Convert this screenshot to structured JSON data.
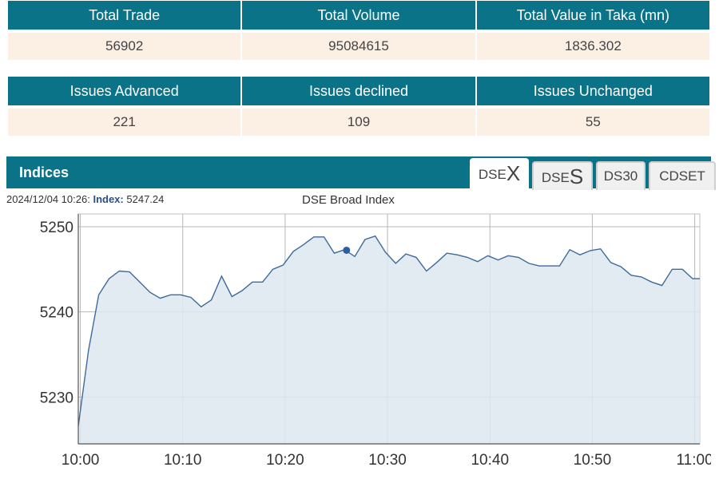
{
  "summary": {
    "headers": [
      "Total Trade",
      "Total Volume",
      "Total Value in Taka (mn)"
    ],
    "values": [
      "56902",
      "95084615",
      "1836.302"
    ]
  },
  "issues": {
    "headers": [
      "Issues Advanced",
      "Issues declined",
      "Issues Unchanged"
    ],
    "values": [
      "221",
      "109",
      "55"
    ]
  },
  "indices": {
    "title": "Indices",
    "tabs": [
      {
        "prefix": "DSE",
        "suffix": "X",
        "active": true
      },
      {
        "prefix": "DSE",
        "suffix": "S",
        "active": false
      },
      {
        "prefix": "DS30",
        "suffix": "",
        "active": false
      },
      {
        "prefix": "CDSET",
        "suffix": "",
        "active": false
      }
    ],
    "info": {
      "datetime": "2024/12/04 10:26:",
      "index_label": "Index:",
      "index_value": "5247.24"
    }
  },
  "colors": {
    "header_bg": "#0b7388",
    "cell_bg": "#fcefe4",
    "line": "#3f6a9a",
    "area": "#dde6f0",
    "marker": "#2a5fa0"
  },
  "chart_data": {
    "type": "area",
    "title": "DSE Broad Index",
    "xlabel": "",
    "ylabel": "",
    "x_ticks": [
      "10:00",
      "10:10",
      "10:20",
      "10:30",
      "10:40",
      "10:50",
      "11:00"
    ],
    "y_ticks": [
      5230,
      5240,
      5250
    ],
    "xlim": [
      -0.2,
      60.5
    ],
    "ylim": [
      5224.5,
      5251.5
    ],
    "grid": true,
    "highlight": {
      "x": 26,
      "y": 5247.24
    },
    "series": [
      {
        "x": [
          -0.2,
          0.8,
          1.8,
          2.8,
          3.8,
          4.8,
          5.8,
          6.8,
          7.8,
          8.8,
          9.8,
          10.8,
          11.8,
          12.8,
          13.8,
          14.8,
          15.8,
          16.8,
          17.8,
          18.8,
          19.8,
          20.8,
          21.8,
          22.8,
          23.8,
          24.8,
          25.8,
          26.8,
          27.8,
          28.8,
          29.8,
          30.8,
          31.8,
          32.8,
          33.8,
          34.8,
          35.8,
          36.8,
          37.8,
          38.8,
          39.8,
          40.8,
          41.8,
          42.8,
          43.8,
          44.8,
          45.8,
          46.8,
          47.8,
          48.8,
          49.8,
          50.8,
          51.8,
          52.8,
          53.8,
          54.8,
          55.8,
          56.8,
          57.8,
          58.8,
          59.8,
          60.5
        ],
        "y": [
          5226.6,
          5235.5,
          5242.0,
          5243.9,
          5244.8,
          5244.7,
          5243.5,
          5242.3,
          5241.6,
          5242.0,
          5242.0,
          5241.7,
          5240.6,
          5241.4,
          5244.2,
          5241.8,
          5242.5,
          5243.5,
          5243.5,
          5245.0,
          5245.5,
          5247.1,
          5247.9,
          5248.8,
          5248.8,
          5246.9,
          5247.3,
          5246.5,
          5248.5,
          5248.9,
          5247.0,
          5245.7,
          5246.8,
          5246.4,
          5244.8,
          5245.8,
          5246.9,
          5246.7,
          5246.4,
          5245.9,
          5246.6,
          5246.1,
          5246.6,
          5246.4,
          5245.7,
          5245.4,
          5245.4,
          5245.4,
          5247.3,
          5246.7,
          5247.2,
          5247.4,
          5245.8,
          5245.3,
          5244.3,
          5244.1,
          5243.5,
          5243.1,
          5245.0,
          5245.0,
          5243.9,
          5243.9
        ]
      }
    ]
  }
}
